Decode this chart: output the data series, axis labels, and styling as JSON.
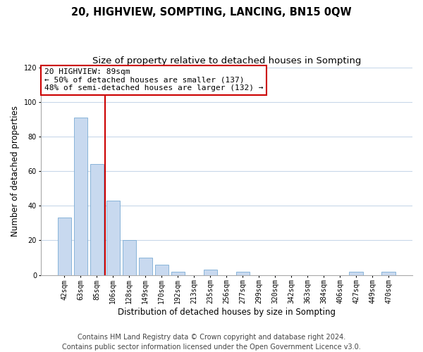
{
  "title": "20, HIGHVIEW, SOMPTING, LANCING, BN15 0QW",
  "subtitle": "Size of property relative to detached houses in Sompting",
  "xlabel": "Distribution of detached houses by size in Sompting",
  "ylabel": "Number of detached properties",
  "bar_labels": [
    "42sqm",
    "63sqm",
    "85sqm",
    "106sqm",
    "128sqm",
    "149sqm",
    "170sqm",
    "192sqm",
    "213sqm",
    "235sqm",
    "256sqm",
    "277sqm",
    "299sqm",
    "320sqm",
    "342sqm",
    "363sqm",
    "384sqm",
    "406sqm",
    "427sqm",
    "449sqm",
    "470sqm"
  ],
  "bar_values": [
    33,
    91,
    64,
    43,
    20,
    10,
    6,
    2,
    0,
    3,
    0,
    2,
    0,
    0,
    0,
    0,
    0,
    0,
    2,
    0,
    2
  ],
  "bar_color": "#c8d9ef",
  "bar_edge_color": "#7aabd4",
  "vline_x_index": 2,
  "vline_color": "#cc0000",
  "annotation_line1": "20 HIGHVIEW: 89sqm",
  "annotation_line2": "← 50% of detached houses are smaller (137)",
  "annotation_line3": "48% of semi-detached houses are larger (132) →",
  "annotation_box_color": "white",
  "annotation_box_edge_color": "#cc0000",
  "ylim": [
    0,
    120
  ],
  "yticks": [
    0,
    20,
    40,
    60,
    80,
    100,
    120
  ],
  "grid_color": "#c8d8ea",
  "footer_text": "Contains HM Land Registry data © Crown copyright and database right 2024.\nContains public sector information licensed under the Open Government Licence v3.0.",
  "title_fontsize": 10.5,
  "subtitle_fontsize": 9.5,
  "xlabel_fontsize": 8.5,
  "ylabel_fontsize": 8.5,
  "footer_fontsize": 7,
  "annotation_fontsize": 8,
  "tick_fontsize": 7
}
